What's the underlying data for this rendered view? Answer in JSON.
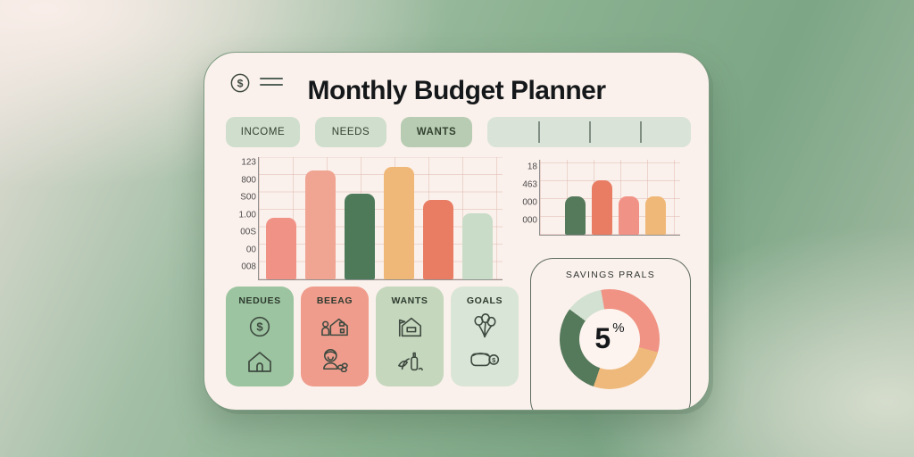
{
  "header": {
    "title": "Monthly Budget Planner",
    "logo_icon": "dollar-coin-icon",
    "menu_icon": "menu-lines-icon"
  },
  "tabs": {
    "items": [
      {
        "label": "INCOME",
        "active": false
      },
      {
        "label": "NEEDS",
        "active": false
      },
      {
        "label": "WANTS",
        "active": true
      }
    ],
    "empty_tab_segments": 4
  },
  "chart_data": [
    {
      "type": "bar",
      "name": "monthly-budget-bar-chart",
      "title": "",
      "xlabel": "",
      "ylabel": "",
      "y_tick_labels": [
        "123",
        "800",
        "S00",
        "1.00",
        "00S",
        "00",
        "008"
      ],
      "categories": [
        "",
        "",
        "",
        "",
        "",
        ""
      ],
      "values": [
        55,
        97,
        76,
        100,
        71,
        59
      ],
      "value_note": "relative bar heights, percent of tallest bar; axis labels are decorative garbled text",
      "bar_colors": [
        "#f19287",
        "#f0a492",
        "#4e7a5a",
        "#f0b878",
        "#e87d64",
        "#c9dcc8"
      ],
      "grid": true,
      "legend": false
    },
    {
      "type": "bar",
      "name": "mini-bar-chart",
      "title": "",
      "y_tick_labels": [
        "18",
        "463",
        "000",
        "000"
      ],
      "categories": [
        "",
        "",
        "",
        ""
      ],
      "values": [
        70,
        100,
        70,
        70
      ],
      "value_note": "relative bar heights, percent of tallest bar",
      "bar_colors": [
        "#55795b",
        "#e87d64",
        "#f19287",
        "#f0b878"
      ],
      "grid": true,
      "legend": false
    },
    {
      "type": "donut",
      "name": "savings-goal-donut",
      "title": "SAVINGS PRALS",
      "center_value": "5",
      "center_unit": "%",
      "start_angle_deg": -10,
      "segments": [
        {
          "label": "salmon",
          "value": 32,
          "color": "#f09384"
        },
        {
          "label": "orange",
          "value": 26,
          "color": "#eeb97b"
        },
        {
          "label": "dark-green",
          "value": 30,
          "color": "#55795b"
        },
        {
          "label": "light-green",
          "value": 12,
          "color": "#d2e1d1"
        }
      ]
    }
  ],
  "category_cards": [
    {
      "label": "NEDUES",
      "color": "#9cc4a0",
      "icons": [
        "dollar-coin-icon",
        "house-icon"
      ]
    },
    {
      "label": "BEEAG",
      "color": "#ef9c8d",
      "icons": [
        "house-person-icon",
        "baby-coins-icon"
      ]
    },
    {
      "label": "WANTS",
      "color": "#c5d7bd",
      "icons": [
        "house-flag-icon",
        "plant-bottle-icon"
      ]
    },
    {
      "label": "GOALS",
      "color": "#d9e5d6",
      "icons": [
        "balloons-icon",
        "wallet-coin-icon"
      ]
    }
  ],
  "colors": {
    "panel_bg": "#fbf1ec",
    "panel_border": "#7d9b82",
    "background_green": "#83ac8b",
    "tab_bg": "#cfdecd",
    "tab_active_bg": "#b7ccb2",
    "grid_line": "#dbb0a7",
    "text_dark": "#15181a"
  }
}
